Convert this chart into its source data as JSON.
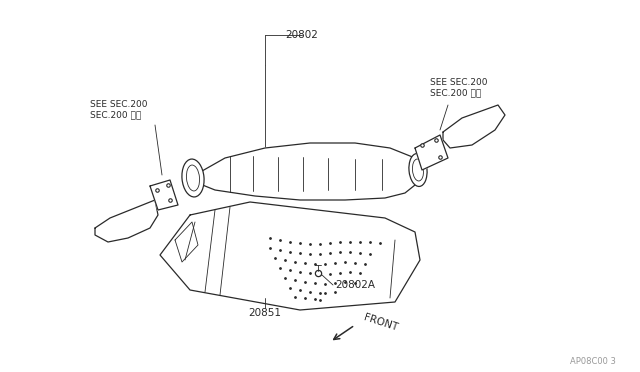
{
  "background_color": "#ffffff",
  "line_color": "#2a2a2a",
  "watermark": "AP08C00 3",
  "label_20802": "20802",
  "label_20802A": "20802A",
  "label_20851": "20851",
  "label_see1": "SEE SEC.200\nSEC.200 参照",
  "label_see2": "SEE SEC.200\nSEC.200 参照",
  "label_front": "FRONT",
  "lw": 0.9,
  "thin_lw": 0.6,
  "text_color": "#2a2a2a",
  "gray_color": "#999999",
  "fontsize_label": 7.5,
  "fontsize_small": 6.5,
  "fontsize_wm": 6.0
}
